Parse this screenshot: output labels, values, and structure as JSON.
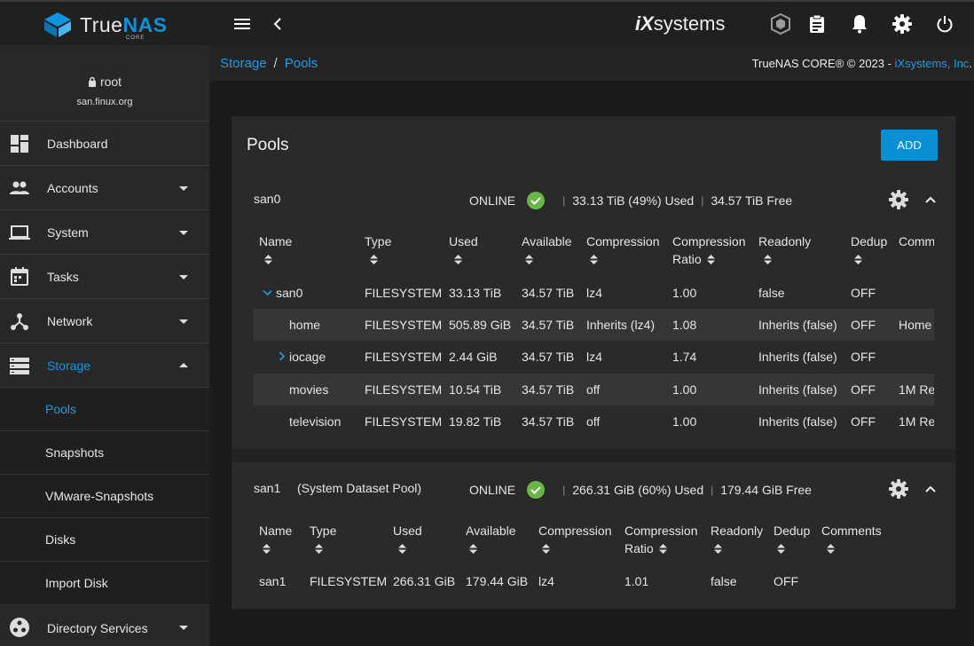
{
  "topbar": {
    "logo": {
      "brand_a": "True",
      "brand_b": "NAS",
      "sub": "CORE"
    },
    "vendor": {
      "prefix": "iX",
      "name": "systems"
    },
    "icons": [
      "menu-icon",
      "chevron-left-icon",
      "truecommand-icon",
      "clipboard-icon",
      "bell-icon",
      "gear-icon",
      "power-icon"
    ]
  },
  "user": {
    "name": "root",
    "host": "san.finux.org"
  },
  "nav": {
    "dashboard": "Dashboard",
    "accounts": "Accounts",
    "system": "System",
    "tasks": "Tasks",
    "network": "Network",
    "storage": "Storage",
    "storage_sub": [
      "Pools",
      "Snapshots",
      "VMware-Snapshots",
      "Disks",
      "Import Disk"
    ],
    "directory": "Directory Services"
  },
  "breadcrumb": {
    "parent": "Storage",
    "sep": "/",
    "current": "Pools"
  },
  "copyright": {
    "text": "TrueNAS CORE® © 2023 - ",
    "link": "iXsystems, Inc",
    "end": "."
  },
  "page": {
    "title": "Pools",
    "add_label": "ADD"
  },
  "colors": {
    "accent": "#0e95e0",
    "online": "#6ab547",
    "button": "#0a8fd4"
  },
  "pools": [
    {
      "name": "san0",
      "note": "",
      "status": "ONLINE",
      "used": "33.13 TiB (49%) Used",
      "free": "34.57 TiB Free",
      "headers": [
        "Name",
        "Type",
        "Used",
        "Available",
        "Compression",
        "Compression Ratio",
        "Readonly",
        "Dedup",
        "Comm"
      ],
      "rows": [
        {
          "name": "san0",
          "type": "FILESYSTEM",
          "used": "33.13 TiB",
          "available": "34.57 TiB",
          "compression": "lz4",
          "ratio": "1.00",
          "readonly": "false",
          "dedup": "OFF",
          "comments": ""
        },
        {
          "name": "home",
          "type": "FILESYSTEM",
          "used": "505.89 GiB",
          "available": "34.57 TiB",
          "compression": "Inherits (lz4)",
          "ratio": "1.08",
          "readonly": "Inherits (false)",
          "dedup": "OFF",
          "comments": "Home"
        },
        {
          "name": "iocage",
          "type": "FILESYSTEM",
          "used": "2.44 GiB",
          "available": "34.57 TiB",
          "compression": "lz4",
          "ratio": "1.74",
          "readonly": "Inherits (false)",
          "dedup": "OFF",
          "comments": ""
        },
        {
          "name": "movies",
          "type": "FILESYSTEM",
          "used": "10.54 TiB",
          "available": "34.57 TiB",
          "compression": "off",
          "ratio": "1.00",
          "readonly": "Inherits (false)",
          "dedup": "OFF",
          "comments": "1M Re"
        },
        {
          "name": "television",
          "type": "FILESYSTEM",
          "used": "19.82 TiB",
          "available": "34.57 TiB",
          "compression": "off",
          "ratio": "1.00",
          "readonly": "Inherits (false)",
          "dedup": "OFF",
          "comments": "1M Re"
        }
      ]
    },
    {
      "name": "san1",
      "note": "(System Dataset Pool)",
      "status": "ONLINE",
      "used": "266.31 GiB (60%) Used",
      "free": "179.44 GiB Free",
      "headers": [
        "Name",
        "Type",
        "Used",
        "Available",
        "Compression",
        "Compression Ratio",
        "Readonly",
        "Dedup",
        "Comments"
      ],
      "rows": [
        {
          "name": "san1",
          "type": "FILESYSTEM",
          "used": "266.31 GiB",
          "available": "179.44 GiB",
          "compression": "lz4",
          "ratio": "1.01",
          "readonly": "false",
          "dedup": "OFF",
          "comments": ""
        }
      ]
    }
  ]
}
